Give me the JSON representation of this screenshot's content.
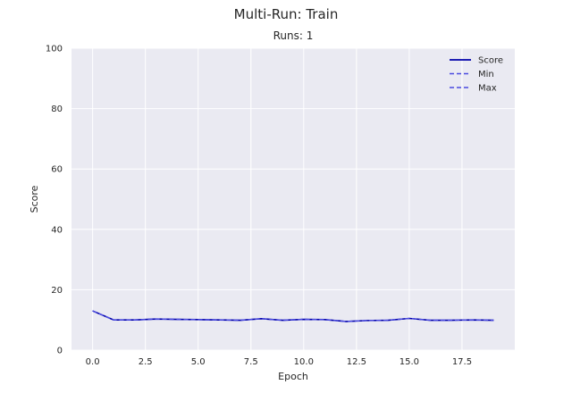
{
  "chart_data": {
    "type": "line",
    "title": "Multi-Run: Train",
    "subtitle": "Runs: 1",
    "xlabel": "Epoch",
    "ylabel": "Score",
    "xlim": [
      -1,
      20
    ],
    "ylim": [
      0,
      100
    ],
    "xticks": [
      "0.0",
      "2.5",
      "5.0",
      "7.5",
      "10.0",
      "12.5",
      "15.0",
      "17.5"
    ],
    "yticks": [
      "0",
      "20",
      "40",
      "60",
      "80",
      "100"
    ],
    "grid": true,
    "legend_position": "top-right",
    "x": [
      0,
      1,
      2,
      3,
      4,
      5,
      6,
      7,
      8,
      9,
      10,
      11,
      12,
      13,
      14,
      15,
      16,
      17,
      18,
      19
    ],
    "series": [
      {
        "name": "Score",
        "style": "solid",
        "color": "#0000aa",
        "values": [
          13,
          10,
          10,
          10.3,
          10.2,
          10.1,
          10,
          9.9,
          10.4,
          9.9,
          10.2,
          10.1,
          9.5,
          9.8,
          9.9,
          10.5,
          9.9,
          9.9,
          10,
          9.9
        ]
      },
      {
        "name": "Min",
        "style": "dashed",
        "color": "#4a4adf",
        "values": [
          13,
          10,
          10,
          10.3,
          10.2,
          10.1,
          10,
          9.9,
          10.4,
          9.9,
          10.2,
          10.1,
          9.5,
          9.8,
          9.9,
          10.5,
          9.9,
          9.9,
          10,
          9.9
        ]
      },
      {
        "name": "Max",
        "style": "dashed",
        "color": "#4a4adf",
        "values": [
          13,
          10,
          10,
          10.3,
          10.2,
          10.1,
          10,
          9.9,
          10.4,
          9.9,
          10.2,
          10.1,
          9.5,
          9.8,
          9.9,
          10.5,
          9.9,
          9.9,
          10,
          9.9
        ]
      }
    ],
    "colors": {
      "background": "#eaeaf2",
      "grid": "#ffffff"
    }
  }
}
